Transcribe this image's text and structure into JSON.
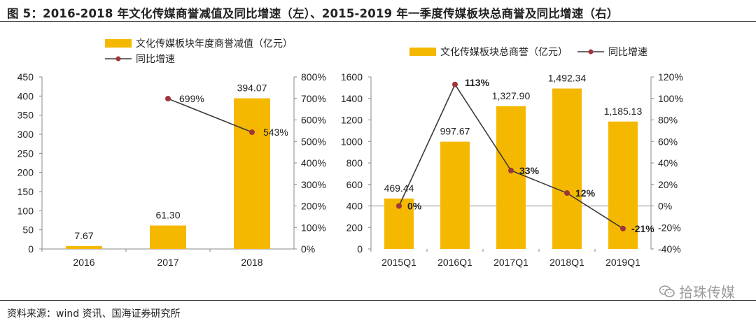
{
  "title": "图 5：2016-2018 年文化传媒商誉减值及同比增速（左）、2015-2019 年一季度传媒板块总商誉及同比增速（右）",
  "source": "资料来源：wind 资讯、国海证券研究所",
  "watermark": "拾珠传媒",
  "colors": {
    "bar": "#F5B800",
    "line": "#3a3a3a",
    "marker": "#A0353A"
  },
  "chart_data": [
    {
      "type": "bar",
      "categories": [
        "2016",
        "2017",
        "2018"
      ],
      "series": [
        {
          "name": "文化传媒板块年度商誉减值（亿元）",
          "values": [
            7.67,
            61.3,
            394.07
          ],
          "labels": [
            "7.67",
            "61.30",
            "394.07"
          ]
        },
        {
          "name": "同比增速",
          "type": "line",
          "axis": "right",
          "values": [
            null,
            699,
            543
          ],
          "labels": [
            "",
            "699%",
            "543%"
          ]
        }
      ],
      "ylim": [
        0,
        450
      ],
      "yticks": [
        "0",
        "50",
        "100",
        "150",
        "200",
        "250",
        "300",
        "350",
        "400",
        "450"
      ],
      "y2lim": [
        0,
        800
      ],
      "y2ticks": [
        "0%",
        "100%",
        "200%",
        "300%",
        "400%",
        "500%",
        "600%",
        "700%",
        "800%"
      ],
      "legend": "top"
    },
    {
      "type": "bar",
      "categories": [
        "2015Q1",
        "2016Q1",
        "2017Q1",
        "2018Q1",
        "2019Q1"
      ],
      "series": [
        {
          "name": "文化传媒板块总商誉（亿元）",
          "values": [
            469.44,
            997.67,
            1327.9,
            1492.34,
            1185.13
          ],
          "labels": [
            "469.44",
            "997.67",
            "1,327.90",
            "1,492.34",
            "1,185.13"
          ]
        },
        {
          "name": "同比增速",
          "type": "line",
          "axis": "right",
          "values": [
            0,
            113,
            33,
            12,
            -21
          ],
          "labels": [
            "0%",
            "113%",
            "33%",
            "12%",
            "-21%"
          ]
        }
      ],
      "ylim": [
        0,
        1600
      ],
      "yticks": [
        "0",
        "200",
        "400",
        "600",
        "800",
        "1000",
        "1200",
        "1400",
        "1600"
      ],
      "y2lim": [
        -40,
        120
      ],
      "y2ticks": [
        "-40%",
        "-20%",
        "0%",
        "20%",
        "40%",
        "60%",
        "80%",
        "100%",
        "120%"
      ],
      "legend": "top"
    }
  ]
}
